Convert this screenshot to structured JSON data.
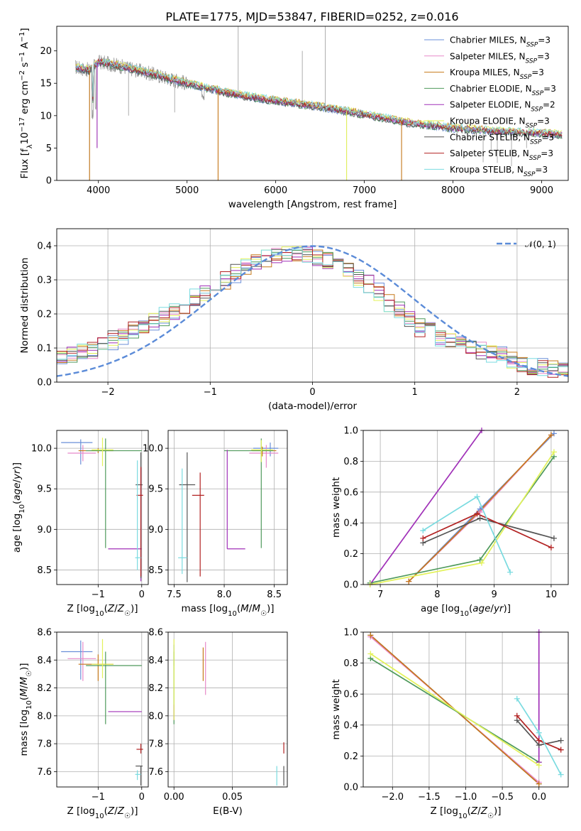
{
  "figure_title": "PLATE=1775, MJD=53847, FIBERID=0252, z=0.016",
  "series_colors": [
    "#6495ed",
    "#ee82ee",
    "#b8860b",
    "#2e8b57",
    "#9932cc",
    "#f0e68c",
    "#404040",
    "#b22222",
    "#40e0d0"
  ],
  "chart_data": [
    {
      "type": "line",
      "panel": "spectrum",
      "xlabel": "wavelength [Angstrom, rest frame]",
      "ylabel": "Flux [f_λ10^-17 erg cm^-2 s^-1 A^-1]",
      "xlim": [
        3530,
        9300
      ],
      "ylim": [
        0,
        23.8
      ],
      "xticks": [
        4000,
        5000,
        6000,
        7000,
        8000,
        9000
      ],
      "yticks": [
        0,
        5,
        10,
        15,
        20
      ],
      "grid": false,
      "legend_position": "upper-right",
      "legend": [
        {
          "label": "Chabrier MILES, N",
          "sub": "SSP",
          "tail": "=3",
          "color": "#6a8fd8"
        },
        {
          "label": "Salpeter MILES, N",
          "sub": "SSP",
          "tail": "=3",
          "color": "#e889c9"
        },
        {
          "label": "Kroupa MILES, N",
          "sub": "SSP",
          "tail": "=3",
          "color": "#c6791a"
        },
        {
          "label": "Chabrier ELODIE, N",
          "sub": "SSP",
          "tail": "=3",
          "color": "#4f9a5c"
        },
        {
          "label": "Salpeter ELODIE, N",
          "sub": "SSP",
          "tail": "=2",
          "color": "#a030b8"
        },
        {
          "label": "Kroupa ELODIE, N",
          "sub": "SSP",
          "tail": "=3",
          "color": "#e3f25a"
        },
        {
          "label": "Chabrier STELIB, N",
          "sub": "SSP",
          "tail": "=3",
          "color": "#555555"
        },
        {
          "label": "Salpeter STELIB, N",
          "sub": "SSP",
          "tail": "=3",
          "color": "#b22222"
        },
        {
          "label": "Kroupa STELIB, N",
          "sub": "SSP",
          "tail": "=3",
          "color": "#7adbe0"
        }
      ],
      "continuum_knots": {
        "x": [
          3740,
          3900,
          4000,
          4200,
          4500,
          5000,
          5500,
          6000,
          6500,
          7000,
          7500,
          8000,
          8500,
          9000,
          9230
        ],
        "y": [
          17.5,
          17.0,
          18.3,
          17.8,
          16.8,
          15.0,
          13.4,
          12.3,
          11.4,
          10.2,
          8.9,
          8.1,
          7.6,
          7.3,
          7.1
        ]
      },
      "spikes": [
        {
          "x": 3900,
          "y": 0
        },
        {
          "x": 3985,
          "y": 5
        },
        {
          "x": 4340,
          "y": 10
        },
        {
          "x": 4860,
          "y": 10.5
        },
        {
          "x": 5350,
          "y": 0
        },
        {
          "x": 5577,
          "y": 23.8
        },
        {
          "x": 6300,
          "y": 20
        },
        {
          "x": 6560,
          "y": 23.8
        },
        {
          "x": 6800,
          "y": 0
        },
        {
          "x": 7420,
          "y": 0
        },
        {
          "x": 8340,
          "y": 2.8
        },
        {
          "x": 8430,
          "y": 4.8
        },
        {
          "x": 8500,
          "y": 2.7
        },
        {
          "x": 8660,
          "y": 2.2
        },
        {
          "x": 8830,
          "y": 5.0
        }
      ]
    },
    {
      "type": "histogram",
      "panel": "residuals",
      "xlabel": "(data-model)/error",
      "ylabel": "Normed distribution",
      "xlim": [
        -2.5,
        2.5
      ],
      "ylim": [
        0,
        0.45
      ],
      "xticks": [
        -2,
        -1,
        0,
        1,
        2
      ],
      "yticks": [
        0.0,
        0.1,
        0.2,
        0.3,
        0.4
      ],
      "grid": true,
      "legend_position": "upper-right",
      "reference_curve": {
        "name": "𝒩(0, 1)",
        "mu": 0,
        "sigma": 1,
        "color": "#5b8bd8"
      },
      "bin_width": 0.1,
      "envelope": {
        "x": [
          -2.5,
          -2.2,
          -1.9,
          -1.6,
          -1.3,
          -1.0,
          -0.8,
          -0.6,
          -0.4,
          -0.2,
          0.0,
          0.2,
          0.4,
          0.6,
          0.8,
          1.0,
          1.2,
          1.5,
          1.8,
          2.1,
          2.5
        ],
        "y": [
          0.07,
          0.09,
          0.13,
          0.17,
          0.21,
          0.27,
          0.31,
          0.35,
          0.37,
          0.38,
          0.37,
          0.35,
          0.32,
          0.28,
          0.22,
          0.17,
          0.14,
          0.11,
          0.08,
          0.05,
          0.03
        ]
      }
    },
    {
      "type": "scatter",
      "panel": "age-vs-metallicity",
      "xlabel": "Z [log10(Z/Z☉)]",
      "ylabel": "age  [log10(age/yr)]",
      "xlim": [
        -1.95,
        0.15
      ],
      "ylim": [
        8.32,
        10.22
      ],
      "xticks": [
        -1,
        0
      ],
      "yticks": [
        8.5,
        9.0,
        9.5,
        10.0
      ],
      "grid": true,
      "points": [
        {
          "color": "#6a8fd8",
          "x": -1.4,
          "y": 10.07,
          "xerr": [
            0.45,
            0.27
          ],
          "yerr": [
            0.27,
            0.04
          ]
        },
        {
          "color": "#e889c9",
          "x": -1.35,
          "y": 9.94,
          "xerr": [
            0.35,
            0.3
          ],
          "yerr": [
            0.1,
            0.1
          ]
        },
        {
          "color": "#c6791a",
          "x": -1.0,
          "y": 9.97,
          "xerr": [
            0.45,
            0.35
          ],
          "yerr": [
            0.03,
            0.03
          ]
        },
        {
          "color": "#4f9a5c",
          "x": -0.83,
          "y": 9.97,
          "xerr": [
            0.45,
            0.83
          ],
          "yerr": [
            1.2,
            0.15
          ]
        },
        {
          "color": "#a030b8",
          "x": -0.02,
          "y": 8.76,
          "xerr": [
            0.75,
            0.02
          ],
          "yerr": [
            0.4,
            1.0
          ]
        },
        {
          "color": "#e3f25a",
          "x": -0.9,
          "y": 9.98,
          "xerr": [
            0.25,
            0.25
          ],
          "yerr": [
            0.2,
            0.15
          ]
        },
        {
          "color": "#555555",
          "x": -0.02,
          "y": 9.55,
          "xerr": [
            0.12,
            0.04
          ],
          "yerr": [
            1.15,
            0.4
          ]
        },
        {
          "color": "#b22222",
          "x": -0.02,
          "y": 9.42,
          "xerr": [
            0.1,
            0.05
          ],
          "yerr": [
            1.0,
            0.35
          ]
        },
        {
          "color": "#7adbe0",
          "x": -0.1,
          "y": 8.65,
          "xerr": [
            0.05,
            0.08
          ],
          "yerr": [
            0.15,
            1.2
          ]
        }
      ]
    },
    {
      "type": "scatter",
      "panel": "age-vs-mass",
      "xlabel": "mass [log10(M/M☉)]",
      "xlim": [
        7.44,
        8.63
      ],
      "ylim": [
        8.32,
        10.22
      ],
      "xticks": [
        7.5,
        8.0,
        8.5
      ],
      "yticks": [
        8.5,
        9.0,
        9.5,
        10.0
      ],
      "grid": true,
      "points": [
        {
          "color": "#6a8fd8",
          "x": 8.46,
          "y": 10.0,
          "xerr": [
            0.17,
            0.08
          ],
          "yerr": [
            0.1,
            0.07
          ]
        },
        {
          "color": "#e889c9",
          "x": 8.42,
          "y": 9.94,
          "xerr": [
            0.17,
            0.12
          ],
          "yerr": [
            0.18,
            0.1
          ]
        },
        {
          "color": "#c6791a",
          "x": 8.38,
          "y": 9.97,
          "xerr": [
            0.1,
            0.14
          ],
          "yerr": [
            0.07,
            0.05
          ]
        },
        {
          "color": "#4f9a5c",
          "x": 8.37,
          "y": 9.97,
          "xerr": [
            0.37,
            0.12
          ],
          "yerr": [
            1.2,
            0.15
          ]
        },
        {
          "color": "#a030b8",
          "x": 8.03,
          "y": 8.76,
          "xerr": [
            0.0,
            0.18
          ],
          "yerr": [
            0.0,
            1.22
          ]
        },
        {
          "color": "#e3f25a",
          "x": 8.37,
          "y": 9.98,
          "xerr": [
            0.1,
            0.12
          ],
          "yerr": [
            0.15,
            0.12
          ]
        },
        {
          "color": "#555555",
          "x": 7.63,
          "y": 9.55,
          "xerr": [
            0.08,
            0.08
          ],
          "yerr": [
            1.2,
            0.4
          ]
        },
        {
          "color": "#b22222",
          "x": 7.76,
          "y": 9.42,
          "xerr": [
            0.08,
            0.04
          ],
          "yerr": [
            1.0,
            0.28
          ]
        },
        {
          "color": "#7adbe0",
          "x": 7.58,
          "y": 8.65,
          "xerr": [
            0.04,
            0.05
          ],
          "yerr": [
            0.2,
            1.1
          ]
        }
      ]
    },
    {
      "type": "line",
      "panel": "weight-vs-age",
      "xlabel": "age  [log10(age/yr)]",
      "ylabel": "mass weight",
      "xlim": [
        6.7,
        10.3
      ],
      "ylim": [
        0,
        1.0
      ],
      "xticks": [
        7,
        8,
        9,
        10
      ],
      "yticks": [
        0.0,
        0.2,
        0.4,
        0.6,
        0.8,
        1.0
      ],
      "grid": true,
      "series": [
        {
          "color": "#6a8fd8",
          "x": [
            7.5,
            8.75,
            10.05
          ],
          "y": [
            0.02,
            0.49,
            0.98
          ]
        },
        {
          "color": "#e889c9",
          "x": [
            7.5,
            8.75,
            10.0
          ],
          "y": [
            0.02,
            0.47,
            0.97
          ]
        },
        {
          "color": "#c6791a",
          "x": [
            7.5,
            8.7,
            10.0
          ],
          "y": [
            0.02,
            0.46,
            0.97
          ]
        },
        {
          "color": "#4f9a5c",
          "x": [
            6.82,
            8.75,
            10.05
          ],
          "y": [
            0.01,
            0.16,
            0.83
          ]
        },
        {
          "color": "#a030b8",
          "x": [
            6.82,
            8.78
          ],
          "y": [
            0.0,
            1.0
          ]
        },
        {
          "color": "#e3f25a",
          "x": [
            6.82,
            8.78,
            10.05
          ],
          "y": [
            0.0,
            0.14,
            0.86
          ]
        },
        {
          "color": "#555555",
          "x": [
            7.75,
            8.75,
            10.05
          ],
          "y": [
            0.27,
            0.43,
            0.3
          ]
        },
        {
          "color": "#b22222",
          "x": [
            7.75,
            8.7,
            10.0
          ],
          "y": [
            0.3,
            0.46,
            0.24
          ]
        },
        {
          "color": "#7adbe0",
          "x": [
            7.75,
            8.7,
            9.28
          ],
          "y": [
            0.35,
            0.57,
            0.08
          ]
        }
      ]
    },
    {
      "type": "scatter",
      "panel": "mass-vs-metallicity",
      "xlabel": "Z [log10(Z/Z☉)]",
      "ylabel": "mass [log10(M/M☉)]",
      "xlim": [
        -1.95,
        0.15
      ],
      "ylim": [
        7.49,
        8.6
      ],
      "xticks": [
        -1,
        0
      ],
      "yticks": [
        7.6,
        7.8,
        8.0,
        8.2,
        8.4,
        8.6
      ],
      "grid": true,
      "points": [
        {
          "color": "#6a8fd8",
          "x": -1.4,
          "y": 8.46,
          "xerr": [
            0.45,
            0.27
          ],
          "yerr": [
            0.2,
            0.08
          ]
        },
        {
          "color": "#e889c9",
          "x": -1.35,
          "y": 8.41,
          "xerr": [
            0.35,
            0.3
          ],
          "yerr": [
            0.16,
            0.12
          ]
        },
        {
          "color": "#c6791a",
          "x": -1.0,
          "y": 8.37,
          "xerr": [
            0.45,
            0.35
          ],
          "yerr": [
            0.12,
            0.07
          ]
        },
        {
          "color": "#4f9a5c",
          "x": -0.83,
          "y": 8.36,
          "xerr": [
            0.45,
            0.83
          ],
          "yerr": [
            0.42,
            0.1
          ]
        },
        {
          "color": "#a030b8",
          "x": -0.02,
          "y": 8.03,
          "xerr": [
            0.75,
            0.02
          ],
          "yerr": [
            0.0,
            0.0
          ]
        },
        {
          "color": "#e3f25a",
          "x": -0.9,
          "y": 8.37,
          "xerr": [
            0.25,
            0.25
          ],
          "yerr": [
            0.1,
            0.18
          ]
        },
        {
          "color": "#555555",
          "x": -0.02,
          "y": 7.64,
          "xerr": [
            0.12,
            0.04
          ],
          "yerr": [
            0.14,
            0.0
          ]
        },
        {
          "color": "#b22222",
          "x": -0.02,
          "y": 7.76,
          "xerr": [
            0.1,
            0.05
          ],
          "yerr": [
            0.03,
            0.04
          ]
        },
        {
          "color": "#7adbe0",
          "x": -0.1,
          "y": 7.58,
          "xerr": [
            0.05,
            0.08
          ],
          "yerr": [
            0.04,
            0.03
          ]
        }
      ]
    },
    {
      "type": "scatter",
      "panel": "mass-vs-ebv",
      "xlabel": "E(B-V)",
      "xlim": [
        -0.005,
        0.097
      ],
      "ylim": [
        7.49,
        8.6
      ],
      "xticks": [
        0.0,
        0.05
      ],
      "yticks": [
        7.6,
        7.8,
        8.0,
        8.2,
        8.4,
        8.6
      ],
      "grid": true,
      "points": [
        {
          "color": "#6a8fd8",
          "x": 0.0,
          "y": 8.46,
          "xerr": [
            0.0,
            0.0
          ],
          "yerr": [
            0.1,
            0.05
          ]
        },
        {
          "color": "#e889c9",
          "x": 0.027,
          "y": 8.41,
          "xerr": [
            0.0,
            0.0
          ],
          "yerr": [
            0.26,
            0.12
          ]
        },
        {
          "color": "#c6791a",
          "x": 0.025,
          "y": 8.37,
          "xerr": [
            0.0,
            0.0
          ],
          "yerr": [
            0.12,
            0.12
          ]
        },
        {
          "color": "#4f9a5c",
          "x": 0.0,
          "y": 8.36,
          "xerr": [
            0.0,
            0.0
          ],
          "yerr": [
            0.42,
            0.1
          ]
        },
        {
          "color": "#a030b8",
          "x": 0.0,
          "y": 8.03,
          "xerr": [
            0.0,
            0.0
          ],
          "yerr": [
            0.06,
            0.05
          ]
        },
        {
          "color": "#e3f25a",
          "x": 0.0,
          "y": 8.37,
          "xerr": [
            0.0,
            0.0
          ],
          "yerr": [
            0.4,
            0.18
          ]
        },
        {
          "color": "#555555",
          "x": 0.094,
          "y": 7.64,
          "xerr": [
            0.0,
            0.0
          ],
          "yerr": [
            0.14,
            0.0
          ]
        },
        {
          "color": "#b22222",
          "x": 0.094,
          "y": 7.76,
          "xerr": [
            0.0,
            0.0
          ],
          "yerr": [
            0.03,
            0.05
          ]
        },
        {
          "color": "#7adbe0",
          "x": 0.088,
          "y": 7.58,
          "xerr": [
            0.0,
            0.0
          ],
          "yerr": [
            0.08,
            0.06
          ]
        }
      ]
    },
    {
      "type": "line",
      "panel": "weight-vs-metallicity",
      "xlabel": "Z [log10(Z/Z☉)]",
      "ylabel": "mass weight",
      "xlim": [
        -2.4,
        0.4
      ],
      "ylim": [
        0,
        1.0
      ],
      "xticks": [
        -2.0,
        -1.5,
        -1.0,
        -0.5,
        0.0
      ],
      "yticks": [
        0.0,
        0.2,
        0.4,
        0.6,
        0.8,
        1.0
      ],
      "grid": true,
      "series": [
        {
          "color": "#6a8fd8",
          "x": [
            -2.3,
            0.0
          ],
          "y": [
            0.98,
            0.02
          ]
        },
        {
          "color": "#e889c9",
          "x": [
            -2.3,
            0.0
          ],
          "y": [
            0.97,
            0.03
          ]
        },
        {
          "color": "#c6791a",
          "x": [
            -2.3,
            0.0
          ],
          "y": [
            0.98,
            0.02
          ]
        },
        {
          "color": "#4f9a5c",
          "x": [
            -2.3,
            0.0
          ],
          "y": [
            0.83,
            0.16
          ]
        },
        {
          "color": "#a030b8",
          "x": [
            0.0,
            0.0
          ],
          "y": [
            1.0,
            0.16
          ]
        },
        {
          "color": "#e3f25a",
          "x": [
            -2.3,
            0.0
          ],
          "y": [
            0.86,
            0.14
          ]
        },
        {
          "color": "#555555",
          "x": [
            -0.3,
            0.0,
            0.3
          ],
          "y": [
            0.43,
            0.27,
            0.3
          ]
        },
        {
          "color": "#b22222",
          "x": [
            -0.3,
            0.0,
            0.3
          ],
          "y": [
            0.46,
            0.3,
            0.24
          ]
        },
        {
          "color": "#7adbe0",
          "x": [
            -0.3,
            0.0,
            0.3
          ],
          "y": [
            0.57,
            0.35,
            0.08
          ]
        }
      ]
    }
  ]
}
